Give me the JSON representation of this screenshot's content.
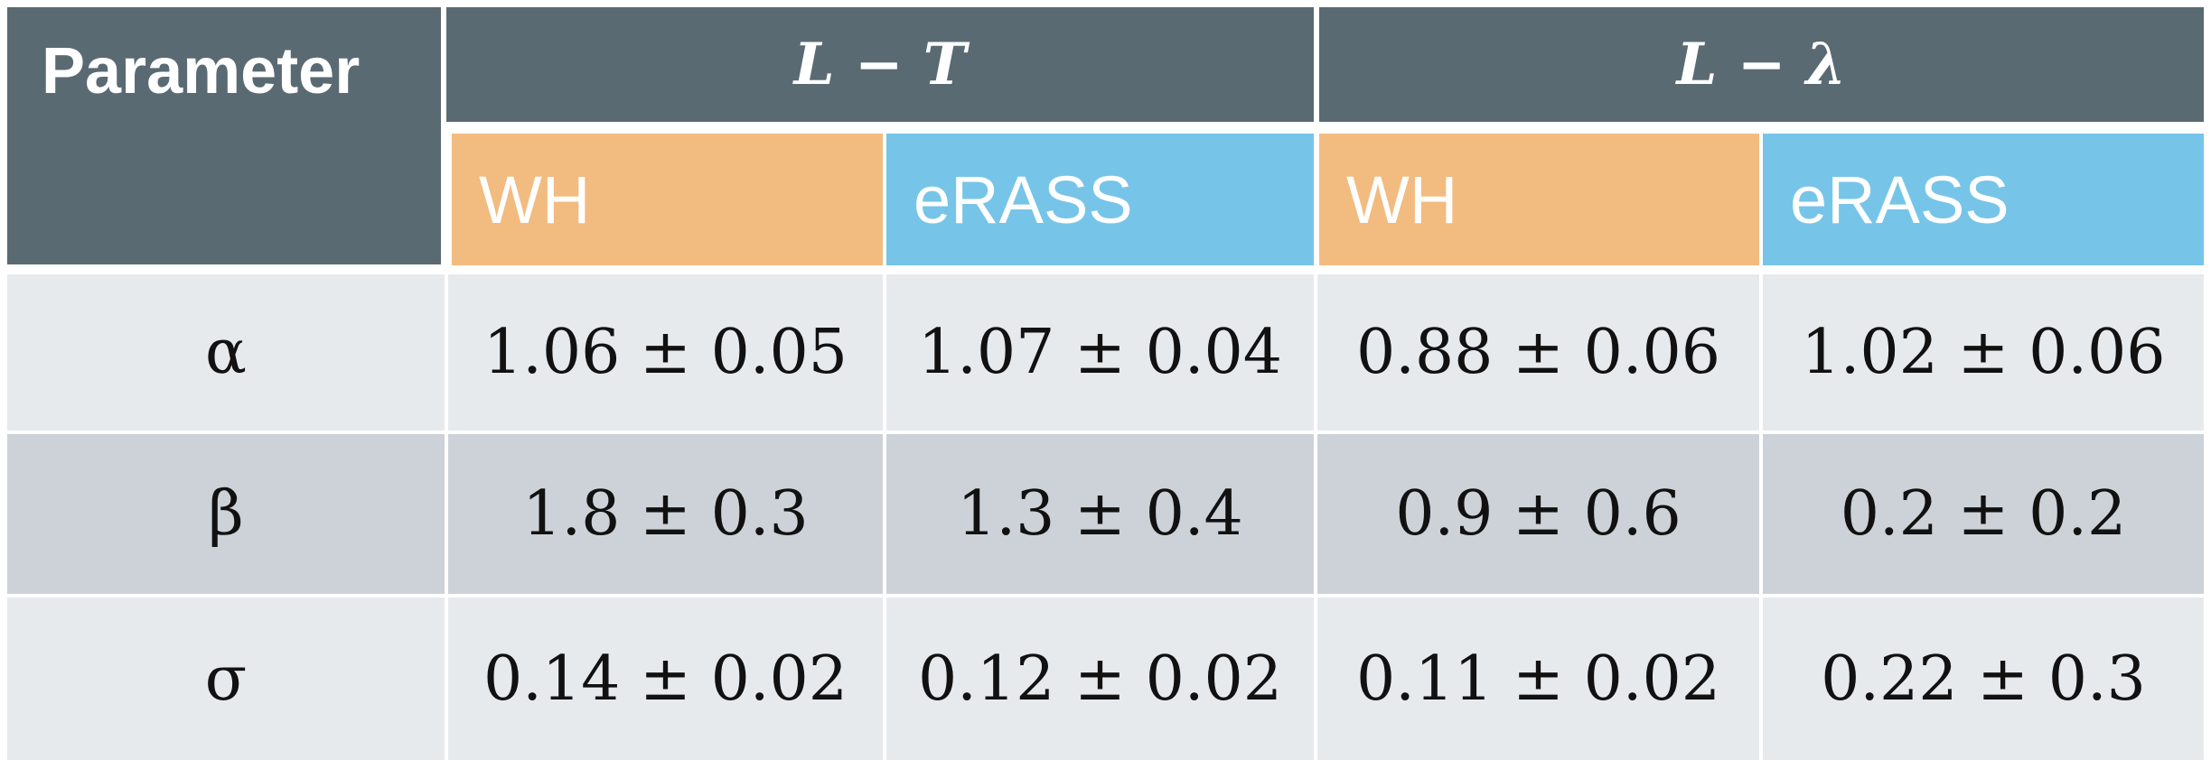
{
  "header": {
    "parameter_label": "Parameter",
    "groups": [
      {
        "label": "L − T"
      },
      {
        "label": "L − λ"
      }
    ],
    "subheaders": [
      "WH",
      "eRASS",
      "WH",
      "eRASS"
    ]
  },
  "colors": {
    "header_dark": "#5a6a73",
    "wh": "#f2bb80",
    "erass": "#76c5e8",
    "row_light": "#e7eaed",
    "row_dark": "#cdd2d8"
  },
  "rows": [
    {
      "param": "α",
      "values": [
        "1.06 ± 0.05",
        "1.07 ± 0.04",
        "0.88 ± 0.06",
        "1.02 ± 0.06"
      ]
    },
    {
      "param": "β",
      "values": [
        "1.8 ± 0.3",
        "1.3 ± 0.4",
        "0.9 ± 0.6",
        "0.2 ± 0.2"
      ]
    },
    {
      "param": "σ",
      "values": [
        "0.14 ± 0.02",
        "0.12 ± 0.02",
        "0.11 ± 0.02",
        "0.22 ± 0.3"
      ]
    }
  ]
}
